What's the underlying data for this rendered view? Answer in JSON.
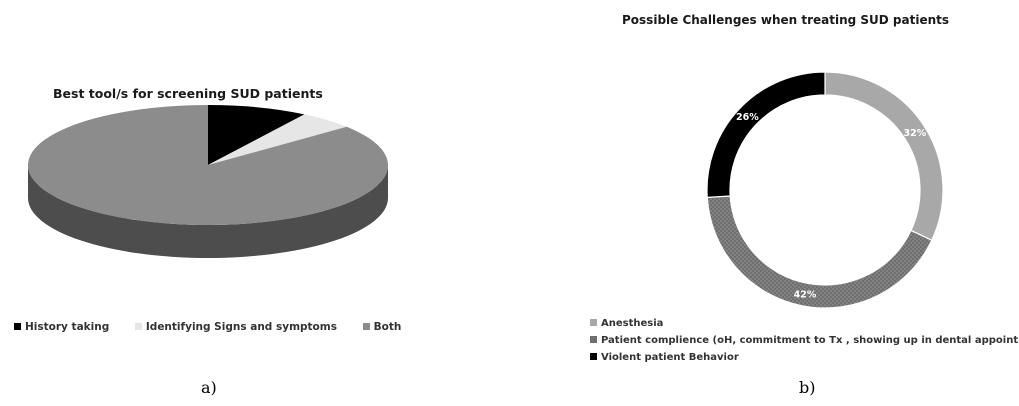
{
  "chart_data": [
    {
      "type": "pie",
      "title": "Best tool/s for screening SUD patients",
      "categories": [
        "History taking",
        "Identifying Signs and symptoms",
        "Both"
      ],
      "values": [
        9,
        5,
        86
      ],
      "colors": [
        "#000000",
        "#e6e6e6",
        "#8c8c8c"
      ],
      "legend": "bottom",
      "three_d": true,
      "caption": "a)"
    },
    {
      "type": "pie",
      "donut": true,
      "title": "Possible Challenges when treating SUD patients",
      "categories": [
        "Anesthesia",
        "Patient complience  (oH, commitment to Tx , showing up in dental appointments )",
        "Violent patient Behavior"
      ],
      "values": [
        32,
        42,
        26
      ],
      "labels": [
        "32%",
        "42%",
        "26%"
      ],
      "colors": [
        "#a8a8a8",
        "#6f6f6f",
        "#000000"
      ],
      "legend": "bottom-left",
      "caption": "b)"
    }
  ]
}
